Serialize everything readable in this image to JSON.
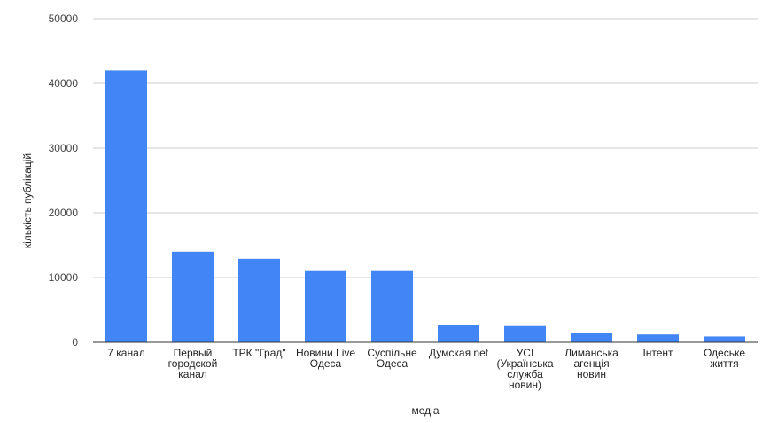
{
  "chart_data": {
    "type": "bar",
    "categories": [
      "7 канал",
      "Первый городской канал",
      "ТРК \"Град\"",
      "Новини Live Одеса",
      "Суспільне Одеса",
      "Думская net",
      "УСІ (Українська служба новин)",
      "Лиманська агенція новин",
      "Інтент",
      "Одеське життя"
    ],
    "category_lines": [
      [
        "7 канал"
      ],
      [
        "Первый",
        "городской",
        "канал"
      ],
      [
        "ТРК \"Град\""
      ],
      [
        "Новини Live",
        "Одеса"
      ],
      [
        "Суспільне",
        "Одеса"
      ],
      [
        "Думская net"
      ],
      [
        "УСІ",
        "(Українська",
        "служба",
        "новин)"
      ],
      [
        "Лиманська",
        "агенція",
        "новин"
      ],
      [
        "Інтент"
      ],
      [
        "Одеське",
        "життя"
      ]
    ],
    "values": [
      42000,
      14000,
      12900,
      11000,
      11000,
      2700,
      2500,
      1400,
      1200,
      900
    ],
    "xlabel": "медіа",
    "ylabel": "кількість публікацій",
    "ylim": [
      0,
      50000
    ],
    "yticks": [
      0,
      10000,
      20000,
      30000,
      40000,
      50000
    ],
    "ytick_labels": [
      "0",
      "10000",
      "20000",
      "30000",
      "40000",
      "50000"
    ],
    "grid": true,
    "legend": "none",
    "bar_color": "#4285f4"
  }
}
